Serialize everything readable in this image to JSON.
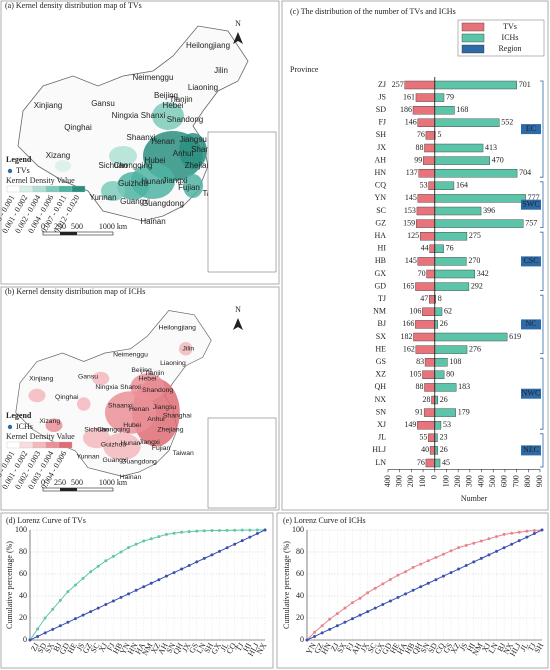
{
  "maps": [
    {
      "title": "(a) Kernel density distribution map of TVs",
      "legend_title": "Legend",
      "point_label": "TVs",
      "density_label": "Kernel Density Value",
      "ranges": [
        "0.000 - 0.001",
        "0.001 - 0.002",
        "0.002 - 0.004",
        "0.004 - 0.006",
        "0.007 - 0.011",
        "0.012 - 0.020"
      ],
      "colors": [
        "#ffffff",
        "#d8efe9",
        "#aee0d5",
        "#7ccbbb",
        "#4fb3a2",
        "#2a8f80"
      ],
      "point_color": "#2d6aa8"
    },
    {
      "title": "(b) Kernel density distribution map of ICHs",
      "legend_title": "Legend",
      "point_label": "ICHs",
      "density_label": "Kernel Density Value",
      "ranges": [
        "0.000 - 0.001",
        "0.001 - 0.002",
        "0.002 - 0.003",
        "0.003 - 0.004",
        "0.004 - 0.006"
      ],
      "colors": [
        "#ffffff",
        "#f9dcde",
        "#f3b9bd",
        "#ea9197",
        "#de6c74"
      ],
      "point_color": "#2d6aa8"
    }
  ],
  "map_labels": [
    "Heilongjiang",
    "Jilin",
    "Liaoning",
    "Neimenggu",
    "Xinjiang",
    "Gansu",
    "Qinghai",
    "Xizang",
    "Sichuan",
    "Yunnan",
    "Guangxi",
    "Guangdong",
    "Hainan",
    "Hunan",
    "Hubei",
    "Jiangxi",
    "Fujian",
    "Zhejiang",
    "Anhui",
    "Jiangsu",
    "Shandong",
    "Henan",
    "Shanxi",
    "Hebei",
    "Ningxia",
    "Shaanxi",
    "Chongqing",
    "Guizhou",
    "Taiwan",
    "Beijing",
    "Tianjin",
    "Shanghai"
  ],
  "north": "N",
  "scale_labels": [
    "0",
    "250",
    "500",
    "1000 km"
  ],
  "chart_data": [
    {
      "type": "butterfly",
      "title": "(c) The distribution of the number of TVs and ICHs",
      "y_label": "Province",
      "x_label": "Number",
      "categories": [
        "ZJ",
        "JS",
        "SD",
        "FJ",
        "SH",
        "JX",
        "AH",
        "HN",
        "CQ",
        "YN",
        "SC",
        "GZ",
        "HA",
        "HI",
        "HB",
        "GX",
        "GD",
        "TJ",
        "NM",
        "BJ",
        "SX",
        "HE",
        "GS",
        "XZ",
        "QH",
        "NX",
        "SN",
        "XJ",
        "JL",
        "HLJ",
        "LN"
      ],
      "series": [
        {
          "name": "TVs",
          "color": "#e8737a",
          "side": "left",
          "values": [
            257,
            161,
            186,
            146,
            76,
            88,
            99,
            137,
            53,
            145,
            153,
            159,
            125,
            44,
            145,
            70,
            165,
            47,
            106,
            166,
            182,
            162,
            83,
            105,
            88,
            28,
            91,
            149,
            55,
            40,
            76
          ]
        },
        {
          "name": "ICHs",
          "color": "#5cc4a8",
          "side": "right",
          "values": [
            701,
            79,
            168,
            552,
            5,
            413,
            470,
            704,
            164,
            777,
            396,
            757,
            275,
            76,
            270,
            342,
            292,
            8,
            62,
            26,
            619,
            276,
            108,
            80,
            183,
            26,
            179,
            53,
            23,
            26,
            45
          ]
        }
      ],
      "region_legend": "Region",
      "region_color": "#2d6aa8",
      "regions": [
        {
          "name": "EC",
          "members": [
            "ZJ",
            "HN"
          ]
        },
        {
          "name": "SWC",
          "members": [
            "CQ",
            "GZ"
          ]
        },
        {
          "name": "CSC",
          "members": [
            "HA",
            "GD"
          ]
        },
        {
          "name": "NC",
          "members": [
            "TJ",
            "HE"
          ]
        },
        {
          "name": "NWC",
          "members": [
            "GS",
            "XJ"
          ]
        },
        {
          "name": "NEC",
          "members": [
            "JL",
            "LN"
          ]
        }
      ],
      "xlim": [
        -400,
        900
      ],
      "xticks": [
        {
          "value": -400,
          "label": "400"
        },
        {
          "value": -300,
          "label": "300"
        },
        {
          "value": -200,
          "label": "200"
        },
        {
          "value": -100,
          "label": "100"
        },
        0,
        100,
        200,
        300,
        400,
        500,
        600,
        700,
        800,
        900
      ]
    },
    {
      "type": "line",
      "title": "(d) Lorenz Curve of TVs",
      "y_label": "Cumulative percentage (%)",
      "categories": [
        null,
        "ZJ",
        "SD",
        "SX",
        "BJ",
        "GD",
        "HE",
        "JS",
        "GZ",
        "SC",
        "XJ",
        "FJ",
        "HB",
        "YN",
        "HN",
        "HA",
        "NM",
        "XZ",
        "AH",
        "SN",
        "QH",
        "JX",
        "GS",
        "LN",
        "SH",
        "GX",
        "JL",
        "CQ",
        "TJ",
        "HI",
        "HLJ",
        "NX"
      ],
      "series": [
        {
          "color": "#5ec7a8",
          "values": [
            0,
            10,
            20,
            28,
            36,
            44,
            50,
            56,
            62,
            67,
            72,
            76,
            80,
            84,
            87,
            90,
            92,
            94,
            96,
            97,
            98,
            98.5,
            99,
            99.3,
            99.5,
            99.6,
            99.7,
            99.8,
            99.9,
            99.9,
            100,
            100
          ]
        },
        {
          "color": "#3a4fb0",
          "values": [
            0,
            3.2,
            6.5,
            9.7,
            12.9,
            16.1,
            19.4,
            22.6,
            25.8,
            29.0,
            32.3,
            35.5,
            38.7,
            41.9,
            45.2,
            48.4,
            51.6,
            54.8,
            58.1,
            61.3,
            64.5,
            67.7,
            71.0,
            74.2,
            77.4,
            80.6,
            83.9,
            87.1,
            90.3,
            93.5,
            96.8,
            100
          ]
        }
      ],
      "ylim": [
        0,
        100
      ],
      "yticks": [
        0,
        20,
        40,
        60,
        80,
        100
      ],
      "grid": true
    },
    {
      "type": "line",
      "title": "(e) Lorenz Curve of ICHs",
      "y_label": "Cumulative percentage (%)",
      "categories": [
        null,
        "YN",
        "GZ",
        "HN",
        "ZJ",
        "SX",
        "FJ",
        "AH",
        "JX",
        "SC",
        "GX",
        "GD",
        "HE",
        "HA",
        "HB",
        "QH",
        "SN",
        "SD",
        "CQ",
        "GS",
        "XZ",
        "JS",
        "HI",
        "NM",
        "XJ",
        "LN",
        "BJ",
        "NX",
        "HLJ",
        "JL",
        "TJ",
        "SH"
      ],
      "series": [
        {
          "color": "#e8848c",
          "values": [
            0,
            7,
            13,
            19,
            24,
            29,
            34,
            38,
            43,
            47,
            51,
            55,
            59,
            62,
            66,
            69,
            72,
            75,
            78,
            81,
            84,
            86,
            88,
            90,
            92,
            94,
            96,
            97,
            98,
            99,
            99.6,
            100
          ]
        },
        {
          "color": "#3a4fb0",
          "values": [
            0,
            3.2,
            6.5,
            9.7,
            12.9,
            16.1,
            19.4,
            22.6,
            25.8,
            29.0,
            32.3,
            35.5,
            38.7,
            41.9,
            45.2,
            48.4,
            51.6,
            54.8,
            58.1,
            61.3,
            64.5,
            67.7,
            71.0,
            74.2,
            77.4,
            80.6,
            83.9,
            87.1,
            90.3,
            93.5,
            96.8,
            100
          ]
        }
      ],
      "ylim": [
        0,
        100
      ],
      "yticks": [
        0,
        20,
        40,
        60,
        80,
        100
      ],
      "grid": true
    }
  ]
}
